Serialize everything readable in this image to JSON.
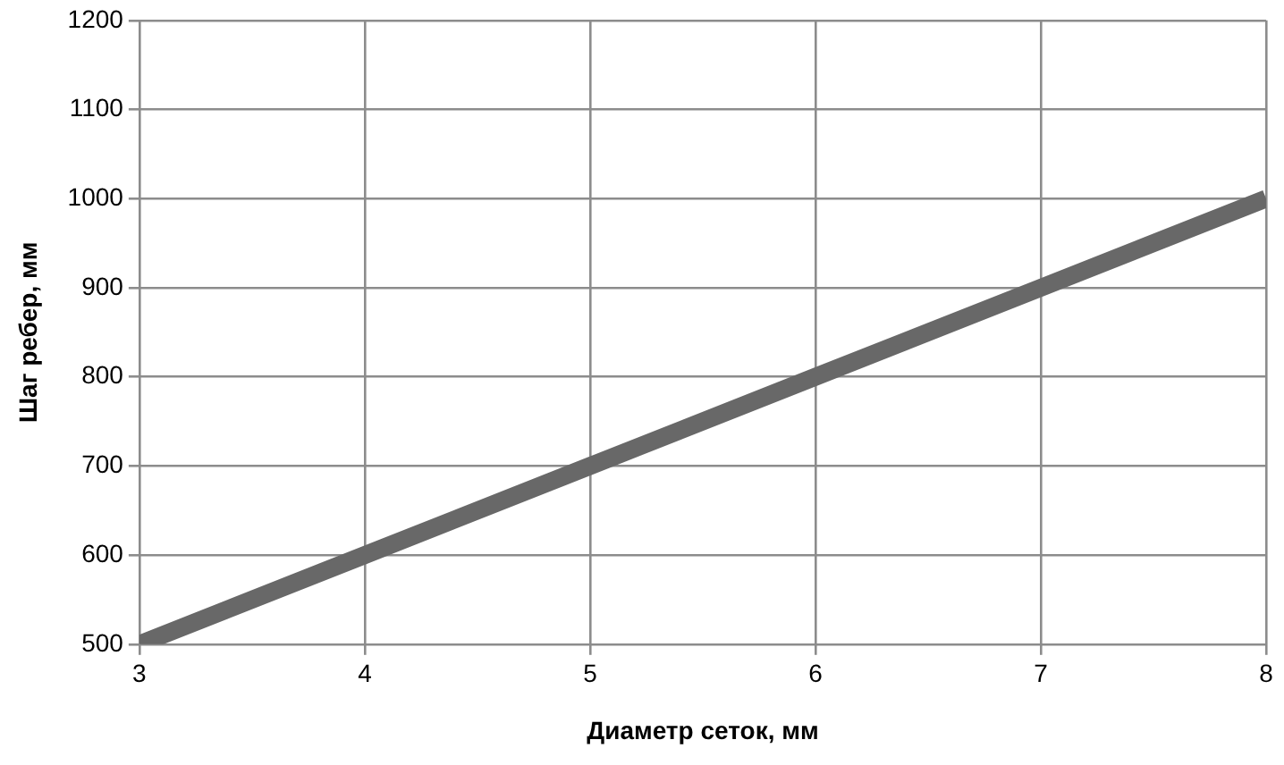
{
  "chart_data": {
    "type": "line",
    "xlabel": "Диаметр сеток, мм",
    "ylabel": "Шаг ребер, мм",
    "x": [
      3,
      4,
      5,
      6,
      7,
      8
    ],
    "series": [
      {
        "color": "#686868",
        "values": [
          500,
          600,
          700,
          800,
          900,
          1000
        ]
      }
    ],
    "xlim": [
      3,
      8
    ],
    "xticks": [
      3,
      4,
      5,
      6,
      7,
      8
    ],
    "ylim": [
      500,
      1200
    ],
    "yticks": [
      500,
      600,
      700,
      800,
      900,
      1000,
      1100,
      1200
    ],
    "grid": true,
    "legend": false,
    "marker": "none",
    "line_style": "solid"
  }
}
